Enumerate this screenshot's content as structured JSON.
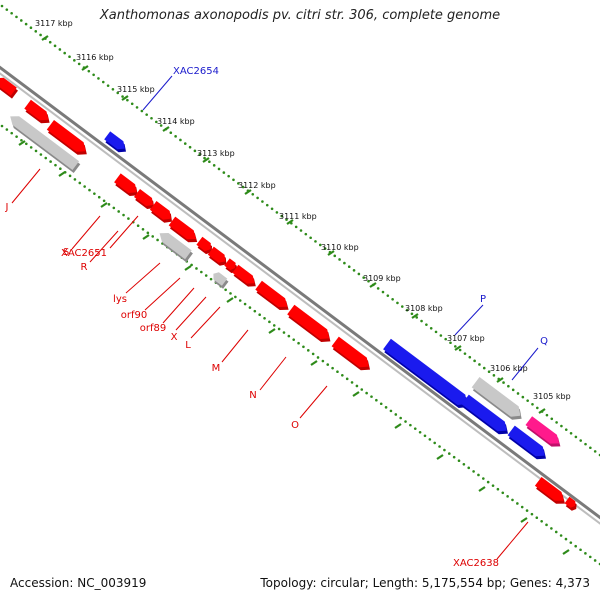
{
  "title": "Xanthomonas axonopodis pv. citri str. 306, complete genome",
  "footer": {
    "accession": "Accession: NC_003919",
    "topology": "Topology: circular; Length: 5,175,554 bp; Genes: 4,373"
  },
  "colors": {
    "red_gene": "#ff0000",
    "blue_gene": "#1a1aee",
    "gray_gene": "#c8c8c8",
    "pink_gene": "#ff1a8c",
    "tick": "#2e8b1a",
    "backbone": "#7a7a7a",
    "label_red": "#dd0000",
    "label_blue": "#1a1acc"
  },
  "ticks": [
    "3117 kbp",
    "3116 kbp",
    "3115 kbp",
    "3114 kbp",
    "3113 kbp",
    "3112 kbp",
    "3111 kbp",
    "3110 kbp",
    "3109 kbp",
    "3108 kbp",
    "3107 kbp",
    "3106 kbp",
    "3105 kbp"
  ],
  "genes": [
    {
      "color": "red",
      "strand": "minus"
    },
    {
      "color": "red",
      "strand": "plus"
    },
    {
      "color": "red",
      "strand": "plus"
    },
    {
      "color": "gray",
      "strand": "minus"
    },
    {
      "color": "blue",
      "strand": "plus"
    },
    {
      "color": "red",
      "strand": "plus"
    },
    {
      "color": "red",
      "strand": "plus"
    },
    {
      "color": "red",
      "strand": "plus"
    },
    {
      "color": "red",
      "strand": "plus"
    },
    {
      "color": "gray",
      "strand": "minus"
    },
    {
      "color": "red",
      "strand": "plus"
    },
    {
      "color": "red",
      "strand": "plus"
    },
    {
      "color": "red",
      "strand": "plus"
    },
    {
      "color": "gray",
      "strand": "minus"
    },
    {
      "color": "red",
      "strand": "plus"
    },
    {
      "color": "red",
      "strand": "plus"
    },
    {
      "color": "red",
      "strand": "plus"
    },
    {
      "color": "red",
      "strand": "plus"
    },
    {
      "color": "blue",
      "strand": "plus"
    },
    {
      "color": "gray",
      "strand": "plus"
    },
    {
      "color": "blue",
      "strand": "plus"
    },
    {
      "color": "blue",
      "strand": "plus"
    },
    {
      "color": "pink",
      "strand": "plus"
    },
    {
      "color": "red",
      "strand": "plus"
    },
    {
      "color": "red",
      "strand": "plus"
    }
  ],
  "labels": [
    {
      "text": "J",
      "color": "red"
    },
    {
      "text": "S",
      "color": "red"
    },
    {
      "text": "R",
      "color": "red"
    },
    {
      "text": "XAC2651",
      "color": "red"
    },
    {
      "text": "lys",
      "color": "red"
    },
    {
      "text": "orf90",
      "color": "red"
    },
    {
      "text": "orf89",
      "color": "red"
    },
    {
      "text": "X",
      "color": "red"
    },
    {
      "text": "L",
      "color": "red"
    },
    {
      "text": "M",
      "color": "red"
    },
    {
      "text": "N",
      "color": "red"
    },
    {
      "text": "O",
      "color": "red"
    },
    {
      "text": "XAC2654",
      "color": "blue"
    },
    {
      "text": "P",
      "color": "blue"
    },
    {
      "text": "Q",
      "color": "blue"
    },
    {
      "text": "XAC2638",
      "color": "red"
    }
  ]
}
